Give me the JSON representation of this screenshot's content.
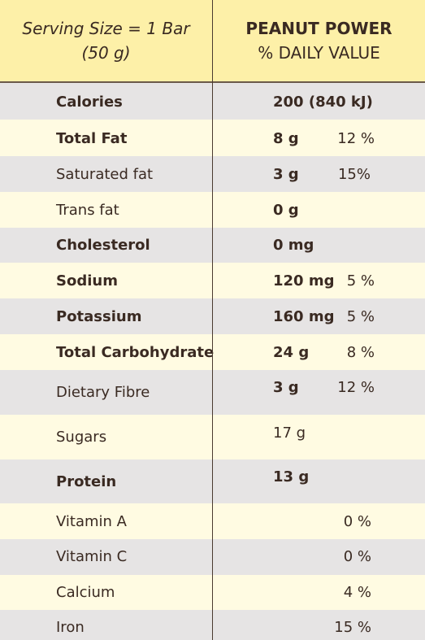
{
  "header": {
    "serving_line1": "Serving Size = 1 Bar",
    "serving_line2": "(50 g)",
    "brand": "PEANUT POWER",
    "subtitle": "% DAILY VALUE"
  },
  "rows": [
    {
      "nutrient": "Calories",
      "amount": "200 (840 kJ)",
      "pct": ""
    },
    {
      "nutrient": "Total Fat",
      "amount": "8 g",
      "pct": "12 %"
    },
    {
      "nutrient": "Saturated fat",
      "amount": "3 g",
      "pct": "15%"
    },
    {
      "nutrient": "Trans fat",
      "amount": "0 g",
      "pct": ""
    },
    {
      "nutrient": "Cholesterol",
      "amount": "0 mg",
      "pct": ""
    },
    {
      "nutrient": "Sodium",
      "amount": "120 mg",
      "pct": "5 %"
    },
    {
      "nutrient": "Potassium",
      "amount": "160 mg",
      "pct": "5 %"
    },
    {
      "nutrient": "Total Carbohydrate",
      "amount": "24 g",
      "pct": "8 %"
    },
    {
      "nutrient": "Dietary Fibre",
      "amount": "3 g",
      "pct": "12 %"
    },
    {
      "nutrient": "Sugars",
      "amount": "17 g",
      "pct": ""
    },
    {
      "nutrient": "Protein",
      "amount": "13 g",
      "pct": ""
    },
    {
      "nutrient": "Vitamin A",
      "amount": "",
      "pct": "0 %"
    },
    {
      "nutrient": "Vitamin C",
      "amount": "",
      "pct": "0 %"
    },
    {
      "nutrient": "Calcium",
      "amount": "",
      "pct": "4 %"
    },
    {
      "nutrient": "Iron",
      "amount": "",
      "pct": "15 %"
    }
  ]
}
